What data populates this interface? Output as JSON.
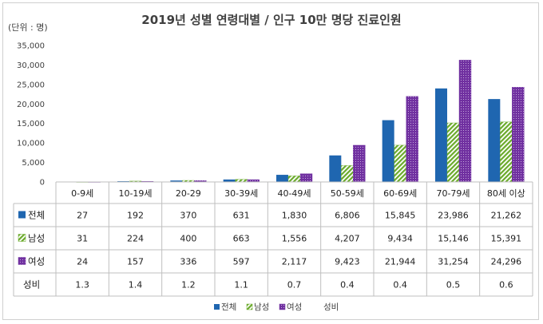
{
  "chart_data": {
    "type": "bar",
    "title": "2019년 성별 연령대별 / 인구 10만 명당 진료인원",
    "unit_label": "(단위 : 명)",
    "categories": [
      "0-9세",
      "10-19세",
      "20-29",
      "30-39세",
      "40-49세",
      "50-59세",
      "60-69세",
      "70-79세",
      "80세 이상"
    ],
    "ylim": [
      0,
      35000
    ],
    "yticks": [
      "0",
      "5,000",
      "10,000",
      "15,000",
      "20,000",
      "25,000",
      "30,000",
      "35,000"
    ],
    "grid": false,
    "legend_position": "bottom",
    "series": [
      {
        "name": "전체",
        "color": "#1f66b0",
        "pattern": "solid",
        "values": [
          27,
          192,
          370,
          631,
          1830,
          6806,
          15845,
          23986,
          21262
        ],
        "labels": [
          "27",
          "192",
          "370",
          "631",
          "1,830",
          "6,806",
          "15,845",
          "23,986",
          "21,262"
        ]
      },
      {
        "name": "남성",
        "color": "#6aaa2a",
        "pattern": "diagonal-stripes",
        "values": [
          31,
          224,
          400,
          663,
          1556,
          4207,
          9434,
          15146,
          15391
        ],
        "labels": [
          "31",
          "224",
          "400",
          "663",
          "1,556",
          "4,207",
          "9,434",
          "15,146",
          "15,391"
        ]
      },
      {
        "name": "여성",
        "color": "#7030a0",
        "pattern": "dots",
        "values": [
          24,
          157,
          336,
          597,
          2117,
          9423,
          21944,
          31254,
          24296
        ],
        "labels": [
          "24",
          "157",
          "336",
          "597",
          "2,117",
          "9,423",
          "21,944",
          "31,254",
          "24,296"
        ]
      }
    ],
    "ratio_row": {
      "name": "성비",
      "labels": [
        "1.3",
        "1.4",
        "1.2",
        "1.1",
        "0.7",
        "0.4",
        "0.4",
        "0.5",
        "0.6"
      ]
    }
  }
}
